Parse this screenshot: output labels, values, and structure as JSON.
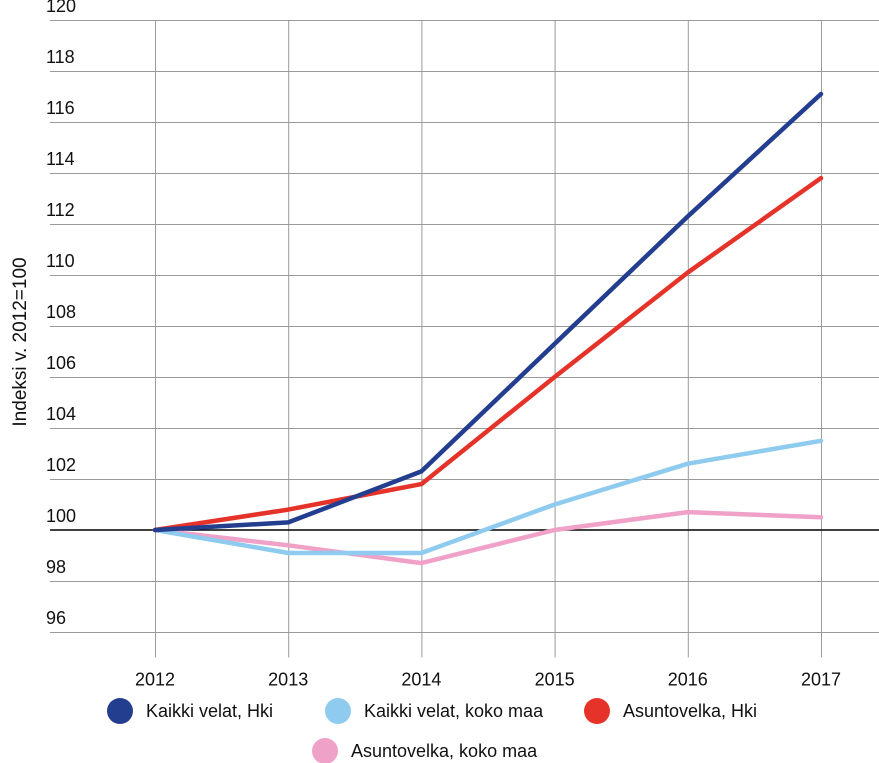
{
  "chart_data": {
    "type": "line",
    "title": "",
    "xlabel": "",
    "ylabel": "Indeksi v. 2012=100",
    "x": [
      "2012",
      "2013",
      "2014",
      "2015",
      "2016",
      "2017"
    ],
    "y_ticks": [
      "120",
      "118",
      "116",
      "114",
      "112",
      "110",
      "108",
      "106",
      "104",
      "102",
      "100",
      "98",
      "96"
    ],
    "ylim": [
      95,
      120
    ],
    "reference_line": 100,
    "grid": true,
    "legend_position": "bottom",
    "series": [
      {
        "name": "Kaikki velat, Hki",
        "color": "#233d8f",
        "values": [
          100.0,
          100.3,
          102.3,
          107.3,
          112.3,
          117.1
        ]
      },
      {
        "name": "Kaikki velat, koko maa",
        "color": "#8ecbef",
        "values": [
          100.0,
          99.1,
          99.1,
          101.0,
          102.6,
          103.5
        ]
      },
      {
        "name": "Asuntovelka, Hki",
        "color": "#e5332a",
        "values": [
          100.0,
          100.8,
          101.8,
          106.0,
          110.1,
          113.8
        ]
      },
      {
        "name": "Asuntovelka, koko maa",
        "color": "#f0a1c8",
        "values": [
          100.0,
          99.4,
          98.7,
          100.0,
          100.7,
          100.5
        ]
      }
    ]
  }
}
